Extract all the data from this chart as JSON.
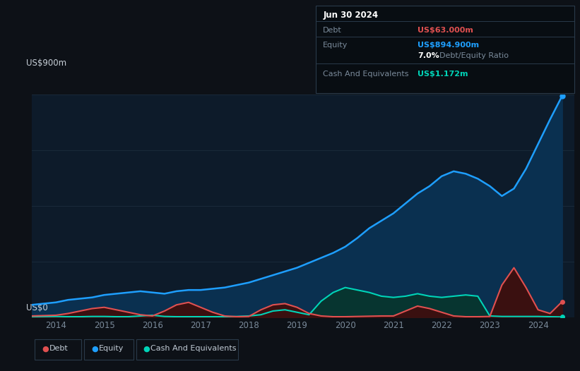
{
  "bg_color": "#0d1117",
  "plot_bg_color": "#0d1b2a",
  "grid_color": "#1a2a3a",
  "title_label_color": "#c8d0d8",
  "axis_label_color": "#7a8a9a",
  "ylabel_900": "US$900m",
  "ylabel_0": "US$0",
  "ylim": [
    0,
    900
  ],
  "xlim": [
    2013.5,
    2024.75
  ],
  "xticks": [
    2014,
    2015,
    2016,
    2017,
    2018,
    2019,
    2020,
    2021,
    2022,
    2023,
    2024
  ],
  "equity_color": "#1e9fff",
  "equity_fill": "#0a3050",
  "debt_color": "#e05050",
  "debt_fill": "#3a1010",
  "cash_color": "#00d4b8",
  "cash_fill": "#073530",
  "legend_border_color": "#2a3a4a",
  "legend_text_color": "#c0cad4",
  "tooltip_bg": "#080d12",
  "tooltip_border": "#2a3a4a",
  "tooltip_title": "Jun 30 2024",
  "tooltip_debt_label": "Debt",
  "tooltip_debt_value": "US$63.000m",
  "tooltip_equity_label": "Equity",
  "tooltip_equity_value": "US$894.900m",
  "tooltip_ratio_bold": "7.0%",
  "tooltip_ratio_text": " Debt/Equity Ratio",
  "tooltip_cash_label": "Cash And Equivalents",
  "tooltip_cash_value": "US$1.172m",
  "equity_x": [
    2013.5,
    2014.0,
    2014.25,
    2014.5,
    2014.75,
    2015.0,
    2015.25,
    2015.5,
    2015.75,
    2016.0,
    2016.25,
    2016.5,
    2016.75,
    2017.0,
    2017.25,
    2017.5,
    2017.75,
    2018.0,
    2018.25,
    2018.5,
    2018.75,
    2019.0,
    2019.25,
    2019.5,
    2019.75,
    2020.0,
    2020.25,
    2020.5,
    2020.75,
    2021.0,
    2021.25,
    2021.5,
    2021.75,
    2022.0,
    2022.25,
    2022.5,
    2022.75,
    2023.0,
    2023.25,
    2023.5,
    2023.75,
    2024.0,
    2024.25,
    2024.5
  ],
  "equity_y": [
    50,
    60,
    70,
    75,
    80,
    90,
    95,
    100,
    105,
    100,
    95,
    105,
    110,
    110,
    115,
    120,
    130,
    140,
    155,
    170,
    185,
    200,
    220,
    240,
    260,
    285,
    320,
    360,
    390,
    420,
    460,
    500,
    530,
    570,
    590,
    580,
    560,
    530,
    490,
    520,
    600,
    700,
    800,
    895
  ],
  "debt_x": [
    2013.5,
    2014.0,
    2014.25,
    2014.5,
    2014.75,
    2015.0,
    2015.25,
    2015.5,
    2015.75,
    2016.0,
    2016.25,
    2016.5,
    2016.75,
    2017.0,
    2017.25,
    2017.5,
    2017.75,
    2018.0,
    2018.25,
    2018.5,
    2018.75,
    2019.0,
    2019.25,
    2019.5,
    2019.75,
    2020.0,
    2020.25,
    2020.5,
    2020.75,
    2021.0,
    2021.25,
    2021.5,
    2021.75,
    2022.0,
    2022.25,
    2022.5,
    2022.75,
    2023.0,
    2023.25,
    2023.5,
    2023.75,
    2024.0,
    2024.25,
    2024.5
  ],
  "debt_y": [
    5,
    8,
    15,
    25,
    35,
    40,
    30,
    20,
    10,
    5,
    25,
    50,
    60,
    40,
    20,
    5,
    2,
    3,
    30,
    50,
    55,
    40,
    15,
    5,
    2,
    2,
    3,
    4,
    5,
    5,
    25,
    45,
    35,
    20,
    5,
    2,
    2,
    3,
    130,
    200,
    120,
    30,
    15,
    63
  ],
  "cash_x": [
    2013.5,
    2014.0,
    2014.25,
    2014.5,
    2014.75,
    2015.0,
    2015.25,
    2015.5,
    2015.75,
    2016.0,
    2016.25,
    2016.5,
    2016.75,
    2017.0,
    2017.25,
    2017.5,
    2017.75,
    2018.0,
    2018.25,
    2018.5,
    2018.75,
    2019.0,
    2019.25,
    2019.5,
    2019.75,
    2020.0,
    2020.25,
    2020.5,
    2020.75,
    2021.0,
    2021.25,
    2021.5,
    2021.75,
    2022.0,
    2022.25,
    2022.5,
    2022.75,
    2023.0,
    2023.25,
    2023.5,
    2023.75,
    2024.0,
    2024.25,
    2024.5
  ],
  "cash_y": [
    2,
    3,
    2,
    2,
    3,
    3,
    2,
    2,
    5,
    8,
    3,
    2,
    2,
    2,
    2,
    2,
    3,
    5,
    10,
    25,
    30,
    20,
    10,
    65,
    100,
    120,
    110,
    100,
    85,
    80,
    85,
    95,
    85,
    80,
    85,
    90,
    85,
    5,
    3,
    3,
    3,
    3,
    2,
    1
  ],
  "legend_items": [
    "Debt",
    "Equity",
    "Cash And Equivalents"
  ]
}
